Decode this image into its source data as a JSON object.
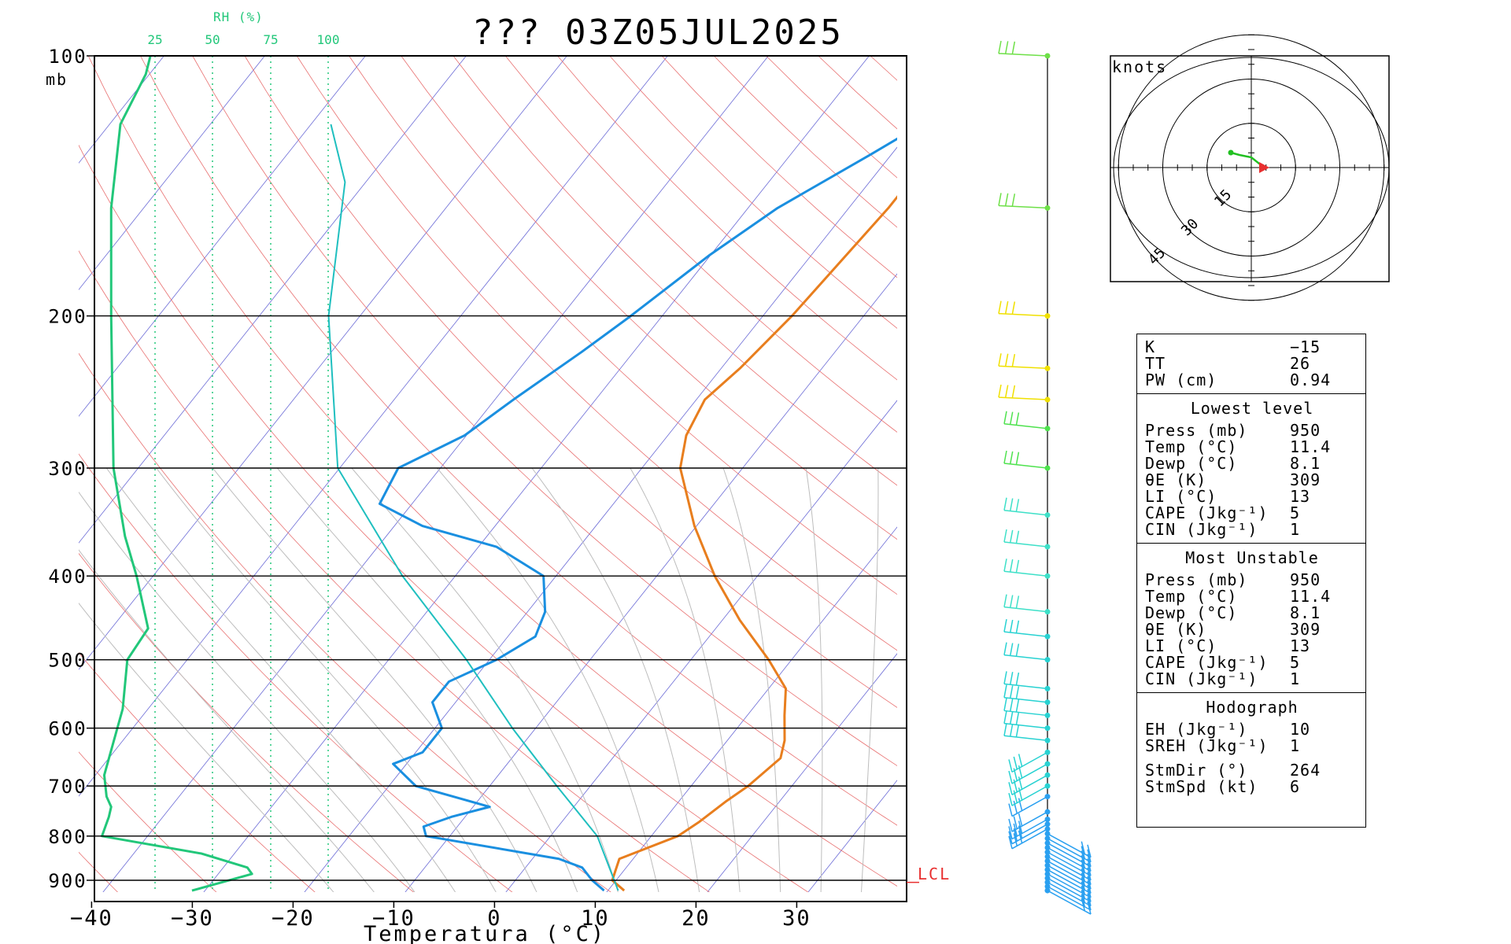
{
  "header": {
    "title": "??? 03Z05JUL2025"
  },
  "chart_data": {
    "type": "skew-t log-p sounding",
    "xlabel": "Temperatura (°C)",
    "ylabel_unit": "mb",
    "x_ticks": [
      -40,
      -30,
      -20,
      -10,
      0,
      10,
      20,
      30
    ],
    "x_tick_labels": [
      "−40",
      "−30",
      "−20",
      "−10",
      "0",
      "10",
      "20",
      "30"
    ],
    "p_ticks": [
      100,
      200,
      300,
      400,
      500,
      600,
      700,
      800,
      900
    ],
    "p_range": [
      100,
      940
    ],
    "rh_axis": {
      "title": "RH (%)",
      "ticks": [
        "25",
        "50",
        "75",
        "100"
      ]
    },
    "lcl": {
      "label": "LCL",
      "pressure_mb": 905
    },
    "colors": {
      "temperature": "#e87e1e",
      "dewpoint": "#1a8fe0",
      "parcel": "#1fbfbf",
      "rh_profile": "#22c77a",
      "isotherm": "#6b6bd6",
      "dry_adiabat": "#e87070",
      "moist_adiabat": "#bdbdbd",
      "rh_line": "#22c77a",
      "lcl": "#e83030"
    },
    "series": [
      {
        "name": "temperature",
        "points": [
          [
            12,
            925
          ],
          [
            10,
            900
          ],
          [
            9,
            850
          ],
          [
            13,
            800
          ],
          [
            14,
            770
          ],
          [
            15,
            730
          ],
          [
            16,
            700
          ],
          [
            17,
            650
          ],
          [
            16,
            620
          ],
          [
            14,
            580
          ],
          [
            12,
            540
          ],
          [
            8,
            500
          ],
          [
            2,
            450
          ],
          [
            -4,
            400
          ],
          [
            -10,
            350
          ],
          [
            -16,
            300
          ],
          [
            -18,
            275
          ],
          [
            -19,
            250
          ],
          [
            -18,
            230
          ],
          [
            -17,
            200
          ],
          [
            -16,
            150
          ],
          [
            -16,
            130
          ],
          [
            -10,
            110
          ],
          [
            -7,
            100
          ]
        ]
      },
      {
        "name": "dewpoint",
        "points": [
          [
            10,
            925
          ],
          [
            8,
            900
          ],
          [
            6,
            870
          ],
          [
            3,
            850
          ],
          [
            -12,
            800
          ],
          [
            -13,
            780
          ],
          [
            -11,
            760
          ],
          [
            -8,
            740
          ],
          [
            -17,
            700
          ],
          [
            -21,
            660
          ],
          [
            -19,
            640
          ],
          [
            -19,
            600
          ],
          [
            -22,
            560
          ],
          [
            -22,
            530
          ],
          [
            -19,
            500
          ],
          [
            -17,
            470
          ],
          [
            -18,
            440
          ],
          [
            -21,
            400
          ],
          [
            -28,
            370
          ],
          [
            -37,
            350
          ],
          [
            -43,
            330
          ],
          [
            -44,
            300
          ],
          [
            -40,
            275
          ],
          [
            -38,
            250
          ],
          [
            -35,
            220
          ],
          [
            -33,
            200
          ],
          [
            -30,
            170
          ],
          [
            -27,
            150
          ],
          [
            -22,
            130
          ],
          [
            -17,
            112
          ],
          [
            -13,
            100
          ]
        ]
      },
      {
        "name": "parcel",
        "points": [
          [
            11.4,
            925
          ],
          [
            5,
            800
          ],
          [
            -3,
            700
          ],
          [
            -12,
            600
          ],
          [
            -22,
            500
          ],
          [
            -35,
            400
          ],
          [
            -50,
            300
          ],
          [
            -63,
            200
          ],
          [
            -72,
            140
          ],
          [
            -78,
            120
          ]
        ]
      },
      {
        "name": "rh_profile",
        "rh_points": [
          [
            41,
            925
          ],
          [
            67,
            885
          ],
          [
            65,
            870
          ],
          [
            45,
            838
          ],
          [
            2,
            800
          ],
          [
            5,
            760
          ],
          [
            6,
            740
          ],
          [
            4,
            720
          ],
          [
            3,
            680
          ],
          [
            11,
            570
          ],
          [
            13,
            500
          ],
          [
            22,
            460
          ],
          [
            17,
            400
          ],
          [
            12,
            360
          ],
          [
            7,
            300
          ],
          [
            6,
            200
          ],
          [
            6,
            150
          ],
          [
            10,
            120
          ],
          [
            21,
            105
          ],
          [
            23,
            100
          ]
        ]
      }
    ],
    "wind_levels_mb": [
      925,
      915,
      905,
      895,
      885,
      875,
      865,
      855,
      845,
      835,
      825,
      815,
      805,
      795,
      785,
      775,
      765,
      750,
      720,
      700,
      680,
      660,
      640,
      620,
      600,
      580,
      560,
      540,
      500,
      470,
      440,
      400,
      370,
      340,
      300,
      270,
      250,
      230,
      200,
      150,
      100
    ],
    "hodograph": {
      "label": "knots",
      "ring_labels": [
        "15",
        "30",
        "45"
      ]
    }
  },
  "indices": {
    "rows": [
      {
        "label": "K",
        "value": "−15"
      },
      {
        "label": "TT",
        "value": "26"
      },
      {
        "label": "PW (cm)",
        "value": "0.94"
      }
    ],
    "lowest": {
      "title": "Lowest level",
      "rows": [
        {
          "label": "Press (mb)",
          "value": "950"
        },
        {
          "label": "Temp (°C)",
          "value": "11.4"
        },
        {
          "label": "Dewp (°C)",
          "value": "8.1"
        },
        {
          "label": "θE (K)",
          "value": "309"
        },
        {
          "label": "LI (°C)",
          "value": "13"
        },
        {
          "label": "CAPE (Jkg⁻¹)",
          "value": "5"
        },
        {
          "label": "CIN (Jkg⁻¹)",
          "value": "1"
        }
      ]
    },
    "unstable": {
      "title": "Most Unstable",
      "rows": [
        {
          "label": "Press (mb)",
          "value": "950"
        },
        {
          "label": "Temp (°C)",
          "value": "11.4"
        },
        {
          "label": "Dewp (°C)",
          "value": "8.1"
        },
        {
          "label": "θE (K)",
          "value": "309"
        },
        {
          "label": "LI (°C)",
          "value": "13"
        },
        {
          "label": "CAPE (Jkg⁻¹)",
          "value": "5"
        },
        {
          "label": "CIN (Jkg⁻¹)",
          "value": "1"
        }
      ]
    },
    "hodo": {
      "title": "Hodograph",
      "rows": [
        {
          "label": "EH (Jkg⁻¹)",
          "value": "10"
        },
        {
          "label": "SREH (Jkg⁻¹)",
          "value": "1"
        }
      ],
      "storm_rows": [
        {
          "label": "StmDir (°)",
          "value": "264"
        },
        {
          "label": "StmSpd (kt)",
          "value": "6"
        }
      ]
    }
  }
}
